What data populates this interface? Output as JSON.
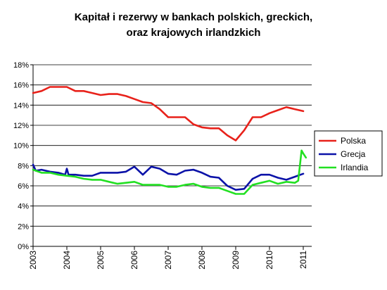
{
  "chart_data": {
    "type": "line",
    "title_lines": [
      "Kapitał i rezerwy w bankach polskich, greckich,",
      "oraz krajowych irlandzkich"
    ],
    "xlabel": "",
    "ylabel": "",
    "x_ticks": [
      "2003",
      "2004",
      "2005",
      "2006",
      "2007",
      "2008",
      "2009",
      "2010",
      "2011"
    ],
    "y_ticks": [
      "0%",
      "2%",
      "4%",
      "6%",
      "8%",
      "10%",
      "12%",
      "14%",
      "16%",
      "18%"
    ],
    "xlim": [
      2003.0,
      2011.25
    ],
    "ylim": [
      0,
      18
    ],
    "y_unit": "%",
    "grid": {
      "horizontal": true,
      "vertical": false
    },
    "legend_position": "right",
    "series": [
      {
        "name": "Polska",
        "color": "#e8211a",
        "points": [
          [
            2003.0,
            15.2
          ],
          [
            2003.25,
            15.4
          ],
          [
            2003.5,
            15.8
          ],
          [
            2003.75,
            15.8
          ],
          [
            2004.0,
            15.8
          ],
          [
            2004.25,
            15.4
          ],
          [
            2004.5,
            15.4
          ],
          [
            2004.75,
            15.2
          ],
          [
            2005.0,
            15.0
          ],
          [
            2005.25,
            15.1
          ],
          [
            2005.5,
            15.1
          ],
          [
            2005.75,
            14.9
          ],
          [
            2006.0,
            14.6
          ],
          [
            2006.25,
            14.3
          ],
          [
            2006.5,
            14.2
          ],
          [
            2006.75,
            13.6
          ],
          [
            2007.0,
            12.8
          ],
          [
            2007.25,
            12.8
          ],
          [
            2007.5,
            12.8
          ],
          [
            2007.75,
            12.1
          ],
          [
            2008.0,
            11.8
          ],
          [
            2008.25,
            11.7
          ],
          [
            2008.5,
            11.7
          ],
          [
            2008.75,
            11.0
          ],
          [
            2009.0,
            10.5
          ],
          [
            2009.25,
            11.5
          ],
          [
            2009.5,
            12.8
          ],
          [
            2009.75,
            12.8
          ],
          [
            2010.0,
            13.2
          ],
          [
            2010.25,
            13.5
          ],
          [
            2010.5,
            13.8
          ],
          [
            2010.75,
            13.6
          ],
          [
            2011.0,
            13.4
          ]
        ]
      },
      {
        "name": "Grecja",
        "color": "#0b12a8",
        "points": [
          [
            2003.0,
            8.1
          ],
          [
            2003.08,
            7.5
          ],
          [
            2003.25,
            7.6
          ],
          [
            2003.5,
            7.4
          ],
          [
            2003.75,
            7.3
          ],
          [
            2003.95,
            7.1
          ],
          [
            2004.0,
            7.7
          ],
          [
            2004.05,
            7.1
          ],
          [
            2004.25,
            7.1
          ],
          [
            2004.5,
            7.0
          ],
          [
            2004.75,
            7.0
          ],
          [
            2005.0,
            7.3
          ],
          [
            2005.25,
            7.3
          ],
          [
            2005.5,
            7.3
          ],
          [
            2005.75,
            7.4
          ],
          [
            2006.0,
            7.9
          ],
          [
            2006.25,
            7.1
          ],
          [
            2006.5,
            7.9
          ],
          [
            2006.75,
            7.7
          ],
          [
            2007.0,
            7.2
          ],
          [
            2007.25,
            7.1
          ],
          [
            2007.5,
            7.5
          ],
          [
            2007.75,
            7.6
          ],
          [
            2008.0,
            7.3
          ],
          [
            2008.25,
            6.9
          ],
          [
            2008.5,
            6.8
          ],
          [
            2008.75,
            6.0
          ],
          [
            2009.0,
            5.6
          ],
          [
            2009.25,
            5.7
          ],
          [
            2009.5,
            6.7
          ],
          [
            2009.75,
            7.1
          ],
          [
            2010.0,
            7.1
          ],
          [
            2010.25,
            6.8
          ],
          [
            2010.5,
            6.6
          ],
          [
            2010.75,
            6.9
          ],
          [
            2011.0,
            7.2
          ]
        ]
      },
      {
        "name": "Irlandia",
        "color": "#22e022",
        "points": [
          [
            2003.0,
            7.6
          ],
          [
            2003.25,
            7.3
          ],
          [
            2003.5,
            7.3
          ],
          [
            2003.75,
            7.1
          ],
          [
            2004.0,
            7.0
          ],
          [
            2004.25,
            6.9
          ],
          [
            2004.5,
            6.7
          ],
          [
            2004.75,
            6.6
          ],
          [
            2005.0,
            6.6
          ],
          [
            2005.25,
            6.4
          ],
          [
            2005.5,
            6.2
          ],
          [
            2005.75,
            6.3
          ],
          [
            2006.0,
            6.4
          ],
          [
            2006.25,
            6.1
          ],
          [
            2006.5,
            6.1
          ],
          [
            2006.75,
            6.1
          ],
          [
            2007.0,
            5.9
          ],
          [
            2007.25,
            5.9
          ],
          [
            2007.5,
            6.1
          ],
          [
            2007.75,
            6.2
          ],
          [
            2008.0,
            5.9
          ],
          [
            2008.25,
            5.8
          ],
          [
            2008.5,
            5.8
          ],
          [
            2008.75,
            5.5
          ],
          [
            2009.0,
            5.2
          ],
          [
            2009.25,
            5.2
          ],
          [
            2009.5,
            6.1
          ],
          [
            2009.75,
            6.3
          ],
          [
            2010.0,
            6.5
          ],
          [
            2010.25,
            6.2
          ],
          [
            2010.5,
            6.4
          ],
          [
            2010.75,
            6.3
          ],
          [
            2010.85,
            6.5
          ],
          [
            2010.95,
            9.5
          ],
          [
            2011.0,
            9.2
          ],
          [
            2011.08,
            8.8
          ]
        ]
      }
    ]
  }
}
